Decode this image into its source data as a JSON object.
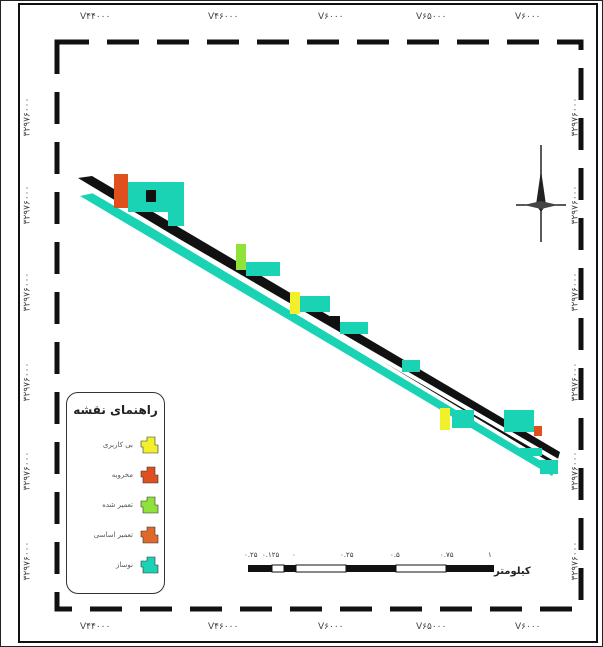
{
  "top_ticks": [
    "V۴۴۰۰۰",
    "V۴۶۰۰۰",
    "V۶۰۰۰",
    "V۶۵۰۰۰",
    "V۶۰۰۰"
  ],
  "bottom_ticks": [
    "V۴۴۰۰۰",
    "V۴۶۰۰۰",
    "V۶۰۰۰",
    "V۶۵۰۰۰",
    "V۶۰۰۰"
  ],
  "left_ticks": [
    "۳۲۹۷۶۰۰۰",
    "۳۲۹۷۶۰۰۰",
    "۳۲۹۷۶۰۰۰",
    "۳۲۹۷۶۰۰۰",
    "۳۲۹۷۶۰۰۰",
    "۳۲۹۷۶۰۰۰"
  ],
  "right_ticks": [
    "۳۲۹۷۶۰۰۰",
    "۳۲۹۷۶۰۰۰",
    "۳۲۹۷۶۰۰۰",
    "۳۲۹۷۶۰۰۰",
    "۳۲۹۷۶۰۰۰",
    "۳۲۹۷۶۰۰۰"
  ],
  "legend": {
    "title": "راهنمای نقشه",
    "items": [
      {
        "label": "بی کاربری",
        "color": "#f2f02a"
      },
      {
        "label": "مخروبه",
        "color": "#e0501e"
      },
      {
        "label": "تعمیر شده",
        "color": "#8fe23a"
      },
      {
        "label": "تعمیر اساسی",
        "color": "#e0682a"
      },
      {
        "label": "نوساز",
        "color": "#19d3b4"
      }
    ]
  },
  "scale": {
    "labels": [
      "۰.۲۵",
      "۰.۱۲۵",
      "۰",
      "۰.۲۵",
      "۰.۵",
      "۰.۷۵",
      "۱"
    ],
    "unit": "کیلومتر"
  },
  "colors": {
    "new": "#19d3b4",
    "dark": "#1a1a1a",
    "yellow": "#f2f02a",
    "green": "#8fe23a",
    "red": "#e0501e"
  }
}
